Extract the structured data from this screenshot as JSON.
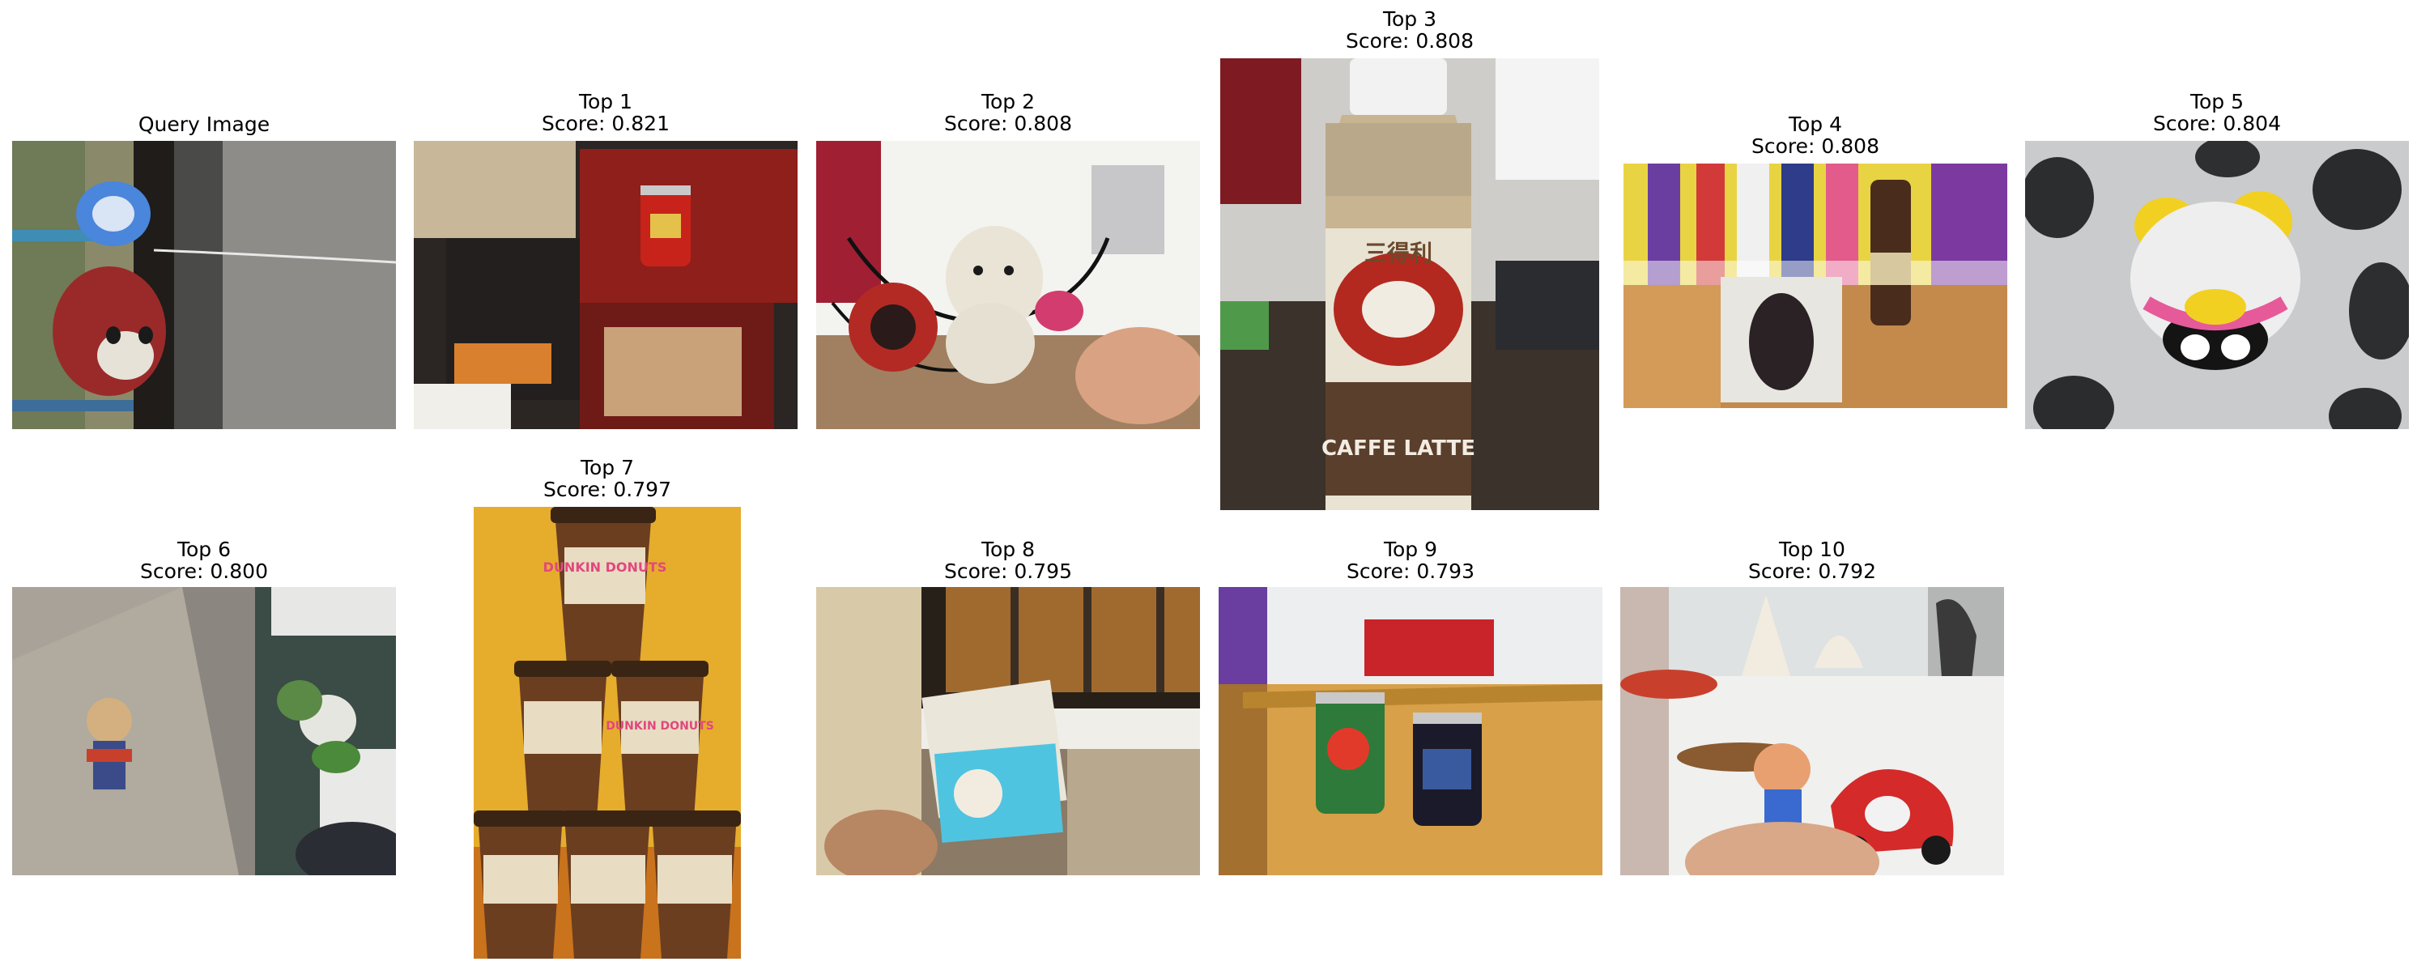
{
  "query": {
    "title": "Query Image",
    "description": "Blue cartoon mug on shelf above a red angry-bird style plush, beside a dark post and gray floor"
  },
  "results": [
    {
      "rank_label": "Top 1",
      "score_label": "Score: 0.821",
      "score": 0.821
    },
    {
      "rank_label": "Top 2",
      "score_label": "Score: 0.808",
      "score": 0.808
    },
    {
      "rank_label": "Top 3",
      "score_label": "Score: 0.808",
      "score": 0.808,
      "bottle_brand": "三得利",
      "bottle_label": "CAFFE LATTE"
    },
    {
      "rank_label": "Top 4",
      "score_label": "Score: 0.808",
      "score": 0.808
    },
    {
      "rank_label": "Top 5",
      "score_label": "Score: 0.804",
      "score": 0.804
    },
    {
      "rank_label": "Top 6",
      "score_label": "Score: 0.800",
      "score": 0.8
    },
    {
      "rank_label": "Top 7",
      "score_label": "Score: 0.797",
      "score": 0.797,
      "cup_text": "DUNKIN DONUTS"
    },
    {
      "rank_label": "Top 8",
      "score_label": "Score: 0.795",
      "score": 0.795
    },
    {
      "rank_label": "Top 9",
      "score_label": "Score: 0.793",
      "score": 0.793
    },
    {
      "rank_label": "Top 10",
      "score_label": "Score: 0.792",
      "score": 0.792
    }
  ]
}
